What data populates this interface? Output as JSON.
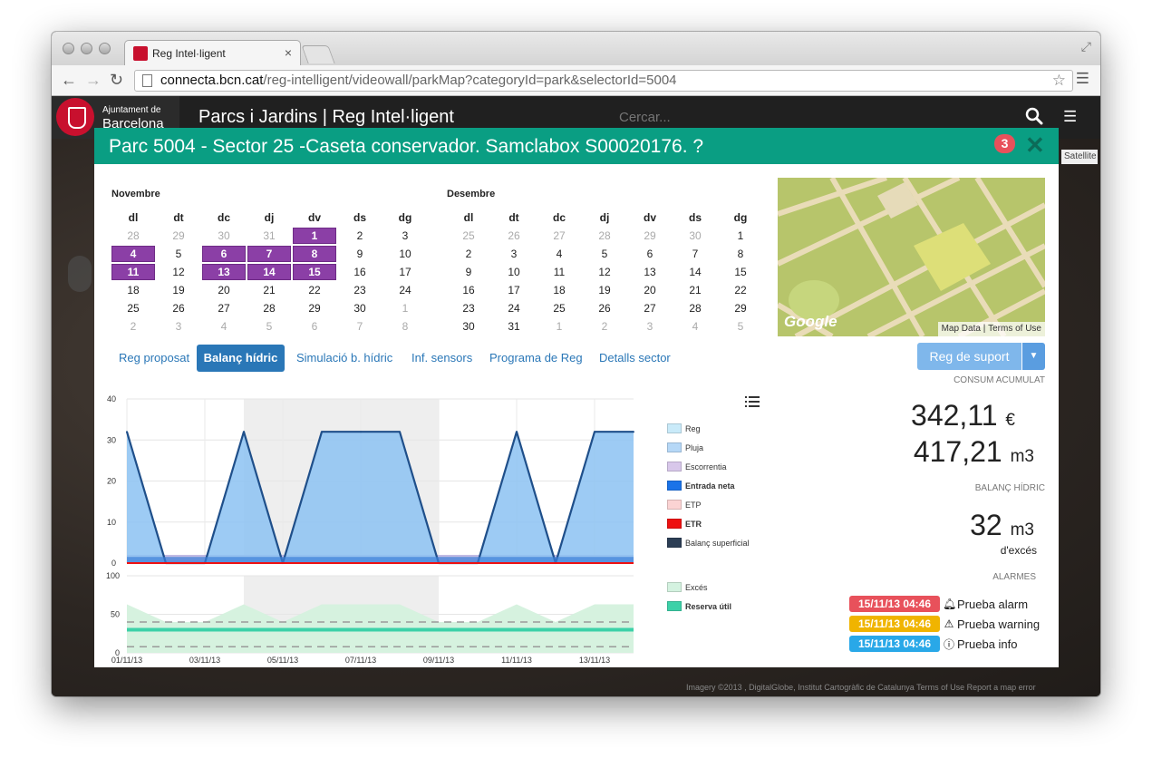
{
  "browser": {
    "tab_title": "Reg Intel·ligent",
    "url_host": "connecta.bcn.cat",
    "url_path": "/reg-intelligent/videowall/parkMap?categoryId=park&selectorId=5004"
  },
  "app": {
    "logo_line1": "Ajuntament de",
    "logo_line2": "Barcelona",
    "title": "Parcs i Jardins | Reg Intel·ligent",
    "search_placeholder": "Cercar...",
    "satellite_label": "Satellite",
    "map_footer": "Imagery ©2013 , DigitalGlobe, Institut Cartogràfic de Catalunya   Terms of Use   Report a map error"
  },
  "modal": {
    "title": "Parc 5004 - Sector 25 -Caseta conservador. Samclabox S00020176. ?",
    "badge": "3",
    "close": "✕"
  },
  "calendar": {
    "weekdays": [
      "dl",
      "dt",
      "dc",
      "dj",
      "dv",
      "ds",
      "dg"
    ],
    "months": [
      {
        "name": "Novembre",
        "weeks": [
          [
            {
              "d": "28",
              "o": true
            },
            {
              "d": "29",
              "o": true
            },
            {
              "d": "30",
              "o": true
            },
            {
              "d": "31",
              "o": true
            },
            {
              "d": "1",
              "s": true
            },
            {
              "d": "2"
            },
            {
              "d": "3"
            }
          ],
          [
            {
              "d": "4",
              "s": true
            },
            {
              "d": "5"
            },
            {
              "d": "6",
              "s": true
            },
            {
              "d": "7",
              "s": true
            },
            {
              "d": "8",
              "s": true
            },
            {
              "d": "9"
            },
            {
              "d": "10"
            }
          ],
          [
            {
              "d": "11",
              "s": true
            },
            {
              "d": "12"
            },
            {
              "d": "13",
              "s": true
            },
            {
              "d": "14",
              "s": true
            },
            {
              "d": "15",
              "s": true
            },
            {
              "d": "16"
            },
            {
              "d": "17"
            }
          ],
          [
            {
              "d": "18"
            },
            {
              "d": "19"
            },
            {
              "d": "20"
            },
            {
              "d": "21"
            },
            {
              "d": "22"
            },
            {
              "d": "23"
            },
            {
              "d": "24"
            }
          ],
          [
            {
              "d": "25"
            },
            {
              "d": "26"
            },
            {
              "d": "27"
            },
            {
              "d": "28"
            },
            {
              "d": "29"
            },
            {
              "d": "30"
            },
            {
              "d": "1",
              "o": true
            }
          ],
          [
            {
              "d": "2",
              "o": true
            },
            {
              "d": "3",
              "o": true
            },
            {
              "d": "4",
              "o": true
            },
            {
              "d": "5",
              "o": true
            },
            {
              "d": "6",
              "o": true
            },
            {
              "d": "7",
              "o": true
            },
            {
              "d": "8",
              "o": true
            }
          ]
        ]
      },
      {
        "name": "Desembre",
        "weeks": [
          [
            {
              "d": "25",
              "o": true
            },
            {
              "d": "26",
              "o": true
            },
            {
              "d": "27",
              "o": true
            },
            {
              "d": "28",
              "o": true
            },
            {
              "d": "29",
              "o": true
            },
            {
              "d": "30",
              "o": true
            },
            {
              "d": "1"
            }
          ],
          [
            {
              "d": "2"
            },
            {
              "d": "3"
            },
            {
              "d": "4"
            },
            {
              "d": "5"
            },
            {
              "d": "6"
            },
            {
              "d": "7"
            },
            {
              "d": "8"
            }
          ],
          [
            {
              "d": "9"
            },
            {
              "d": "10"
            },
            {
              "d": "11"
            },
            {
              "d": "12"
            },
            {
              "d": "13"
            },
            {
              "d": "14"
            },
            {
              "d": "15"
            }
          ],
          [
            {
              "d": "16"
            },
            {
              "d": "17"
            },
            {
              "d": "18"
            },
            {
              "d": "19"
            },
            {
              "d": "20"
            },
            {
              "d": "21"
            },
            {
              "d": "22"
            }
          ],
          [
            {
              "d": "23"
            },
            {
              "d": "24"
            },
            {
              "d": "25"
            },
            {
              "d": "26"
            },
            {
              "d": "27"
            },
            {
              "d": "28"
            },
            {
              "d": "29"
            }
          ],
          [
            {
              "d": "30"
            },
            {
              "d": "31"
            },
            {
              "d": "1",
              "o": true
            },
            {
              "d": "2",
              "o": true
            },
            {
              "d": "3",
              "o": true
            },
            {
              "d": "4",
              "o": true
            },
            {
              "d": "5",
              "o": true
            }
          ]
        ]
      }
    ]
  },
  "minimap": {
    "logo": "Google",
    "map_data": "Map Data",
    "terms": "Terms of Use"
  },
  "tabs": [
    {
      "label": "Reg proposat",
      "active": false
    },
    {
      "label": "Balanç hídric",
      "active": true
    },
    {
      "label": "Simulació b. hídric",
      "active": false
    },
    {
      "label": "Inf. sensors",
      "active": false
    },
    {
      "label": "Programa de Reg",
      "active": false
    },
    {
      "label": "Detalls sector",
      "active": false
    }
  ],
  "actions": {
    "reg_suport": "Reg de suport"
  },
  "stats": {
    "consum_label": "CONSUM ACUMULAT",
    "cost_value": "342,11",
    "cost_unit": "€",
    "volume_value": "417,21",
    "volume_unit": "m3",
    "balance_label": "BALANÇ HÍDRIC",
    "balance_value": "32",
    "balance_unit": "m3",
    "balance_caption": "d'excés"
  },
  "alarms": {
    "label": "ALARMES",
    "items": [
      {
        "time": "15/11/13 04:46",
        "text": "Prueba alarm",
        "icon": "bell-icon",
        "color": "#e8515b"
      },
      {
        "time": "15/11/13 04:46",
        "text": "Prueba warning",
        "icon": "warning-icon",
        "color": "#f0b400"
      },
      {
        "time": "15/11/13 04:46",
        "text": "Prueba info",
        "icon": "info-icon",
        "color": "#29a8e8"
      }
    ]
  },
  "chart_data": [
    {
      "type": "area",
      "x": [
        "01/11/13",
        "02/11/13",
        "03/11/13",
        "04/11/13",
        "05/11/13",
        "06/11/13",
        "07/11/13",
        "08/11/13",
        "09/11/13",
        "10/11/13",
        "11/11/13",
        "12/11/13",
        "13/11/13",
        "14/11/13"
      ],
      "xticks": [
        "01/11/13",
        "03/11/13",
        "05/11/13",
        "07/11/13",
        "09/11/13",
        "11/11/13",
        "13/11/13"
      ],
      "ylim": [
        0,
        40
      ],
      "yticks": [
        0,
        10,
        20,
        30,
        40
      ],
      "highlight_range": [
        "04/11/13",
        "09/11/13"
      ],
      "series": [
        {
          "name": "Balanç superficial",
          "color": "#2c3e55",
          "values": [
            32,
            0,
            0,
            32,
            0,
            32,
            32,
            32,
            0,
            0,
            32,
            0,
            32,
            32
          ]
        },
        {
          "name": "Escorrentia",
          "color": "#c9b8e4",
          "values": [
            2,
            2,
            2,
            2,
            2,
            2,
            2,
            2,
            2,
            2,
            2,
            2,
            2,
            2
          ]
        },
        {
          "name": "ETR",
          "color": "#ee1111",
          "values": [
            0,
            0,
            0,
            0,
            0,
            0,
            0,
            0,
            0,
            0,
            0,
            0,
            0,
            0
          ]
        }
      ],
      "legend": [
        {
          "name": "Reg",
          "color": "#c9eaf9",
          "bold": false
        },
        {
          "name": "Pluja",
          "color": "#b6d8f7",
          "bold": false
        },
        {
          "name": "Escorrentia",
          "color": "#d8c7ea",
          "bold": false
        },
        {
          "name": "Entrada neta",
          "color": "#1a73e8",
          "bold": true
        },
        {
          "name": "ETP",
          "color": "#fbd3d3",
          "bold": false
        },
        {
          "name": "ETR",
          "color": "#ee1111",
          "bold": true
        },
        {
          "name": "Balanç superficial",
          "color": "#2c3e55",
          "bold": false
        }
      ]
    },
    {
      "type": "area",
      "x": [
        "01/11/13",
        "02/11/13",
        "03/11/13",
        "04/11/13",
        "05/11/13",
        "06/11/13",
        "07/11/13",
        "08/11/13",
        "09/11/13",
        "10/11/13",
        "11/11/13",
        "12/11/13",
        "13/11/13",
        "14/11/13"
      ],
      "ylim": [
        0,
        100
      ],
      "yticks": [
        0,
        50,
        100
      ],
      "series": [
        {
          "name": "Excés",
          "color": "#d4f2e0",
          "values": [
            63,
            40,
            40,
            63,
            40,
            63,
            63,
            63,
            40,
            40,
            63,
            40,
            63,
            63
          ]
        },
        {
          "name": "Reserva útil",
          "color": "#3dd1a8",
          "values": [
            30,
            30,
            30,
            30,
            30,
            30,
            30,
            30,
            30,
            30,
            30,
            30,
            30,
            30
          ]
        }
      ],
      "dashed_lines": [
        40,
        8
      ],
      "legend": [
        {
          "name": "Excés",
          "color": "#d4f2e0",
          "bold": false
        },
        {
          "name": "Reserva útil",
          "color": "#3dd1a8",
          "bold": true
        }
      ]
    }
  ]
}
